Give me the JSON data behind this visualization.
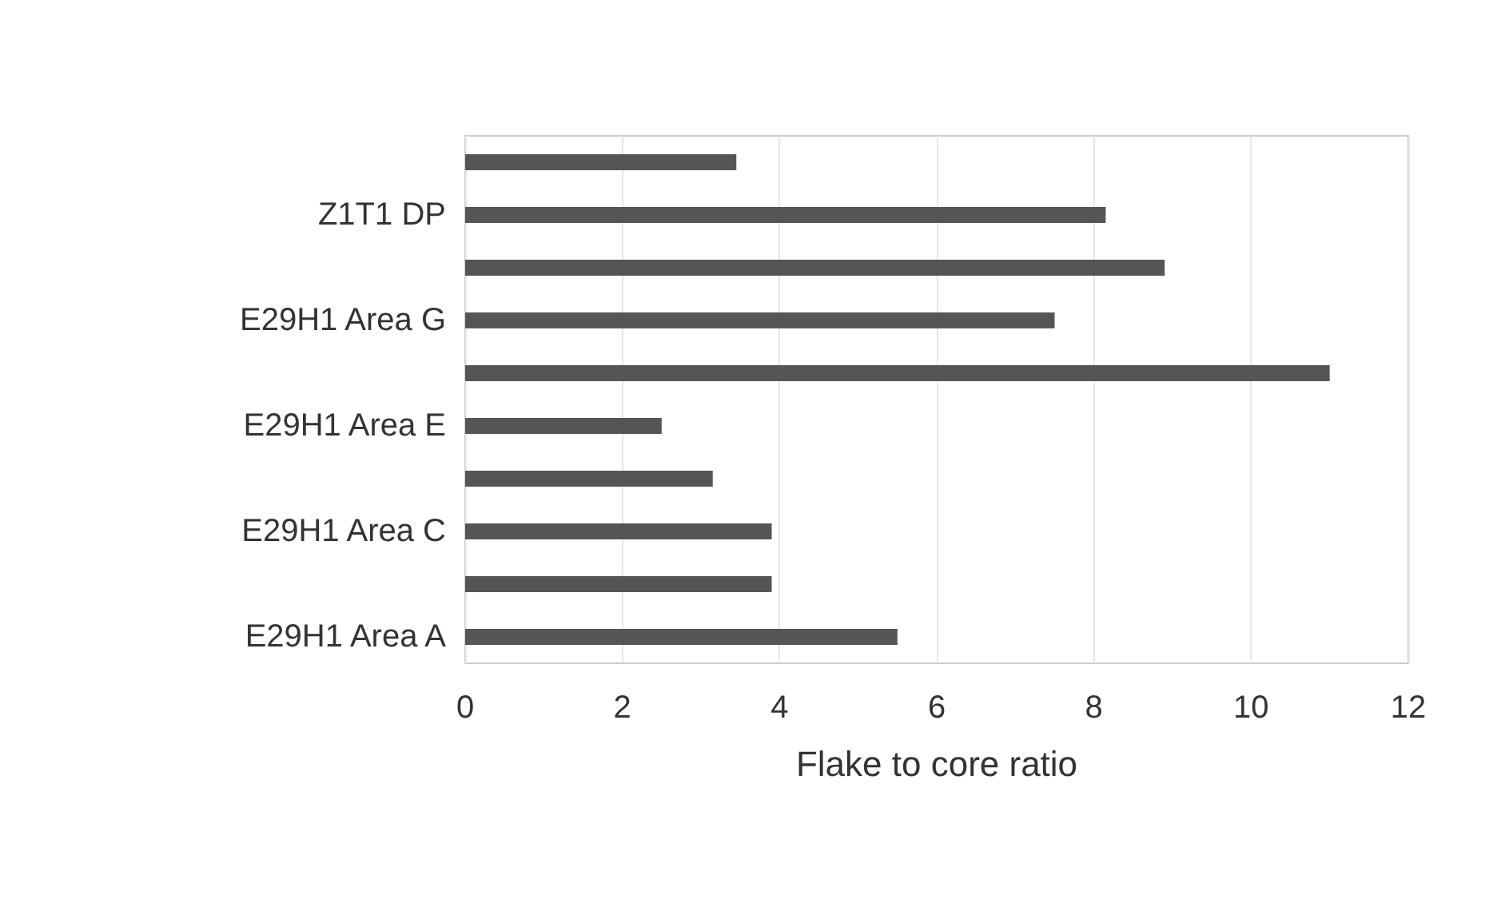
{
  "chart_data": {
    "type": "bar",
    "orientation": "horizontal",
    "categories": [
      null,
      "Z1T1 DP",
      null,
      "E29H1 Area G",
      null,
      "E29H1 Area E",
      null,
      "E29H1 Area C",
      null,
      "E29H1 Area A"
    ],
    "values": [
      3.45,
      8.15,
      8.9,
      7.5,
      11,
      2.5,
      3.15,
      3.9,
      3.9,
      5.5
    ],
    "color": "#555555",
    "xlabel": "Flake to core ratio",
    "xlim": [
      0,
      12
    ],
    "xticks": [
      0,
      2,
      4,
      6,
      8,
      10,
      12
    ],
    "grid": "x"
  }
}
